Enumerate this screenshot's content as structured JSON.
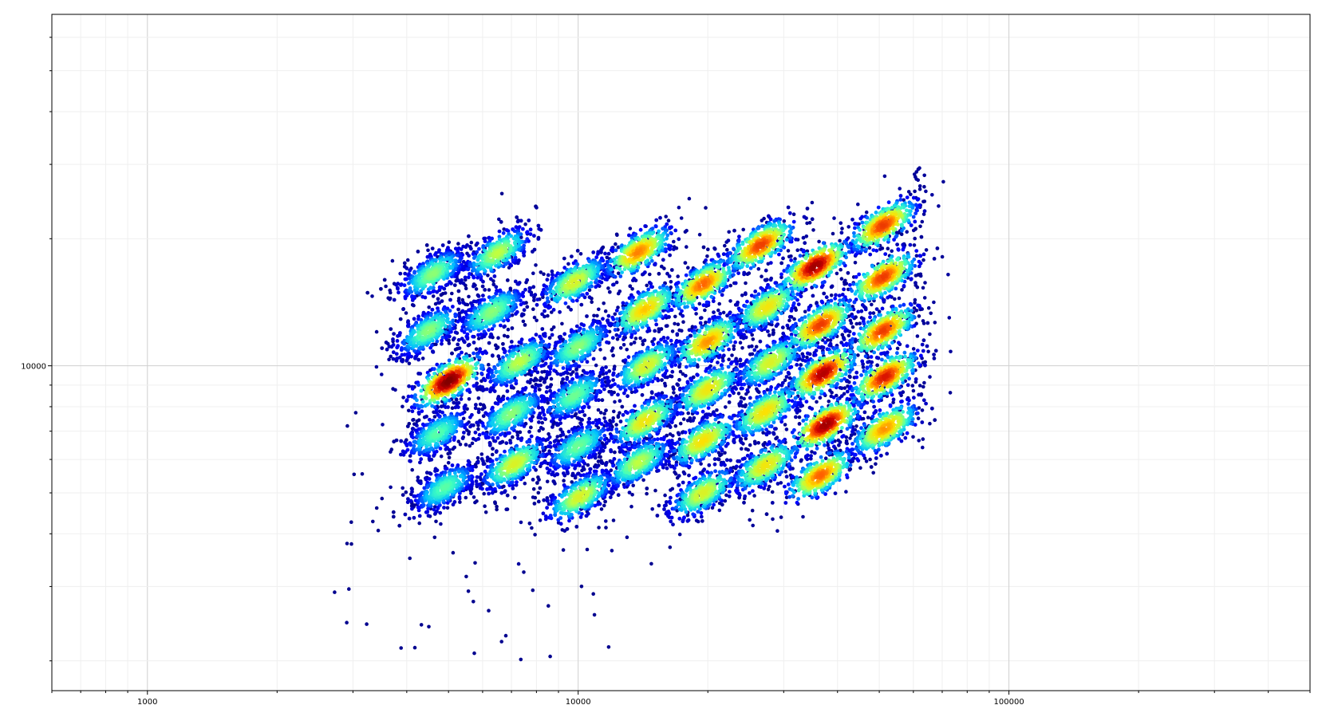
{
  "chart_data": {
    "type": "scatter",
    "title": "",
    "xlabel": "",
    "ylabel": "",
    "xscale": "log",
    "yscale": "log",
    "xlim": [
      600,
      500000
    ],
    "ylim": [
      1700,
      68000
    ],
    "x_ticks": [
      {
        "value": 1000,
        "label": "1000"
      },
      {
        "value": 10000,
        "label": "10000"
      },
      {
        "value": 100000,
        "label": "100000"
      }
    ],
    "y_ticks": [
      {
        "value": 10000,
        "label": "10000"
      }
    ],
    "grid": true,
    "legend": "none",
    "colormap": "jet (density)",
    "colors": [
      "#00008f",
      "#0000ff",
      "#00bfff",
      "#40ffbf",
      "#c0ff40",
      "#ffdf00",
      "#ff6000",
      "#d00000",
      "#800000"
    ],
    "series": [
      {
        "values": [
          {
            "x": 4600,
            "y": 16500,
            "n": 380,
            "peak": 0.45
          },
          {
            "x": 6500,
            "y": 18500,
            "n": 380,
            "peak": 0.5
          },
          {
            "x": 4500,
            "y": 12100,
            "n": 380,
            "peak": 0.45
          },
          {
            "x": 6300,
            "y": 13400,
            "n": 400,
            "peak": 0.45
          },
          {
            "x": 5000,
            "y": 9200,
            "n": 450,
            "peak": 1.0
          },
          {
            "x": 7300,
            "y": 10200,
            "n": 380,
            "peak": 0.5
          },
          {
            "x": 4700,
            "y": 6900,
            "n": 380,
            "peak": 0.4
          },
          {
            "x": 7000,
            "y": 7700,
            "n": 380,
            "peak": 0.45
          },
          {
            "x": 4900,
            "y": 5150,
            "n": 380,
            "peak": 0.4
          },
          {
            "x": 7100,
            "y": 5850,
            "n": 380,
            "peak": 0.55
          },
          {
            "x": 9800,
            "y": 15800,
            "n": 380,
            "peak": 0.55
          },
          {
            "x": 10000,
            "y": 11100,
            "n": 380,
            "peak": 0.45
          },
          {
            "x": 9800,
            "y": 8500,
            "n": 380,
            "peak": 0.42
          },
          {
            "x": 10000,
            "y": 6450,
            "n": 380,
            "peak": 0.42
          },
          {
            "x": 10100,
            "y": 4900,
            "n": 380,
            "peak": 0.55
          },
          {
            "x": 13800,
            "y": 18600,
            "n": 380,
            "peak": 0.72
          },
          {
            "x": 14300,
            "y": 13600,
            "n": 380,
            "peak": 0.65
          },
          {
            "x": 14400,
            "y": 10000,
            "n": 380,
            "peak": 0.55
          },
          {
            "x": 14300,
            "y": 7400,
            "n": 380,
            "peak": 0.6
          },
          {
            "x": 13800,
            "y": 5900,
            "n": 380,
            "peak": 0.5
          },
          {
            "x": 19500,
            "y": 15600,
            "n": 380,
            "peak": 0.75
          },
          {
            "x": 20000,
            "y": 11400,
            "n": 380,
            "peak": 0.7
          },
          {
            "x": 20000,
            "y": 8800,
            "n": 380,
            "peak": 0.6
          },
          {
            "x": 19500,
            "y": 6650,
            "n": 380,
            "peak": 0.62
          },
          {
            "x": 19500,
            "y": 5000,
            "n": 380,
            "peak": 0.55
          },
          {
            "x": 26500,
            "y": 19300,
            "n": 380,
            "peak": 0.8
          },
          {
            "x": 27500,
            "y": 13800,
            "n": 380,
            "peak": 0.6
          },
          {
            "x": 28000,
            "y": 10200,
            "n": 380,
            "peak": 0.55
          },
          {
            "x": 27200,
            "y": 7800,
            "n": 380,
            "peak": 0.62
          },
          {
            "x": 27200,
            "y": 5800,
            "n": 380,
            "peak": 0.6
          },
          {
            "x": 35500,
            "y": 17200,
            "n": 400,
            "peak": 0.95
          },
          {
            "x": 36500,
            "y": 12500,
            "n": 400,
            "peak": 0.8
          },
          {
            "x": 37000,
            "y": 9600,
            "n": 400,
            "peak": 0.92
          },
          {
            "x": 37500,
            "y": 7250,
            "n": 400,
            "peak": 0.95
          },
          {
            "x": 36500,
            "y": 5500,
            "n": 380,
            "peak": 0.75
          },
          {
            "x": 51000,
            "y": 21500,
            "n": 380,
            "peak": 0.8
          },
          {
            "x": 51000,
            "y": 16200,
            "n": 380,
            "peak": 0.8
          },
          {
            "x": 51000,
            "y": 12100,
            "n": 380,
            "peak": 0.8
          },
          {
            "x": 51500,
            "y": 9400,
            "n": 380,
            "peak": 0.85
          },
          {
            "x": 51500,
            "y": 7100,
            "n": 380,
            "peak": 0.7
          }
        ]
      }
    ]
  }
}
